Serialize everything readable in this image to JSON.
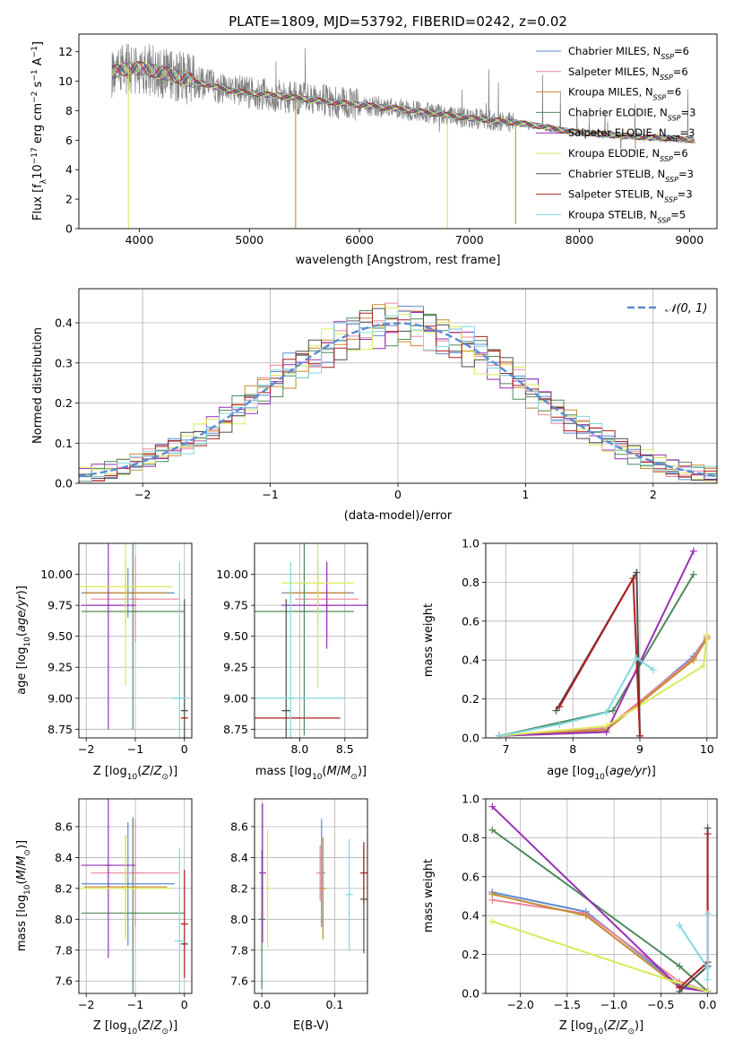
{
  "figure": {
    "title": "PLATE=1809, MJD=53792, FIBERID=0242, z=0.02"
  },
  "colors": {
    "Chabrier MILES": "#5b8bd4",
    "Salpeter MILES": "#e9879a",
    "Kroupa MILES": "#c88a2e",
    "Chabrier ELODIE": "#4f8a5b",
    "Salpeter ELODIE": "#9a2fb6",
    "Kroupa ELODIE": "#d9ea5a",
    "Chabrier STELIB": "#4d4d4d",
    "Salpeter STELIB": "#b01e1e",
    "Kroupa STELIB": "#7fd8e0",
    "data": "#808080",
    "normal": "#5b8bd4",
    "grid": "#b0b0b0"
  },
  "chart_data": [
    {
      "id": "spectrum",
      "type": "line",
      "title": "PLATE=1809, MJD=53792, FIBERID=0242, z=0.02",
      "xlabel": "wavelength [Angstrom, rest frame]",
      "ylabel": "Flux [f_λ 10^-17 erg cm^-2 s^-1 A^-1]",
      "xlim": [
        3450,
        9250
      ],
      "ylim": [
        0,
        13.2
      ],
      "xticks": [
        4000,
        5000,
        6000,
        7000,
        8000,
        9000
      ],
      "yticks": [
        0,
        2,
        4,
        6,
        8,
        10,
        12
      ],
      "grid": false,
      "legend_position": "upper right",
      "legend": [
        {
          "name": "Chabrier MILES",
          "nssp": "6"
        },
        {
          "name": "Salpeter MILES",
          "nssp": "6"
        },
        {
          "name": "Kroupa MILES",
          "nssp": "6"
        },
        {
          "name": "Chabrier ELODIE",
          "nssp": "3"
        },
        {
          "name": "Salpeter ELODIE",
          "nssp": "3"
        },
        {
          "name": "Kroupa ELODIE",
          "nssp": "6"
        },
        {
          "name": "Chabrier STELIB",
          "nssp": "3"
        },
        {
          "name": "Salpeter STELIB",
          "nssp": "3"
        },
        {
          "name": "Kroupa STELIB",
          "nssp": "5"
        }
      ],
      "continuum": [
        [
          3750,
          10.6
        ],
        [
          3850,
          10.8
        ],
        [
          4000,
          10.9
        ],
        [
          4200,
          10.6
        ],
        [
          4500,
          10.0
        ],
        [
          4800,
          9.4
        ],
        [
          5000,
          9.2
        ],
        [
          5300,
          9.0
        ],
        [
          5600,
          8.7
        ],
        [
          6000,
          8.4
        ],
        [
          6400,
          8.1
        ],
        [
          6700,
          7.8
        ],
        [
          7000,
          7.5
        ],
        [
          7300,
          7.3
        ],
        [
          7600,
          7.0
        ],
        [
          7900,
          6.6
        ],
        [
          8200,
          6.4
        ],
        [
          8600,
          6.2
        ],
        [
          8900,
          6.1
        ],
        [
          9050,
          6.0
        ]
      ],
      "dropouts": [
        {
          "x": 3900,
          "y": 0.0,
          "model": "Kroupa ELODIE"
        },
        {
          "x": 5420,
          "y": 0.0,
          "model": "Kroupa MILES"
        },
        {
          "x": 6800,
          "y": 0.0,
          "model": "Kroupa ELODIE"
        },
        {
          "x": 7420,
          "y": 0.3,
          "model": "Kroupa MILES"
        }
      ]
    },
    {
      "id": "residuals",
      "type": "line",
      "xlabel": "(data-model)/error",
      "ylabel": "Normed distribution",
      "xlim": [
        -2.5,
        2.5
      ],
      "ylim": [
        0,
        0.485
      ],
      "xticks": [
        -2,
        -1,
        0,
        1,
        2
      ],
      "yticks": [
        0.0,
        0.1,
        0.2,
        0.3,
        0.4
      ],
      "grid": true,
      "legend_position": "upper right",
      "legend": [
        {
          "name": "N(0,1)",
          "style": "dashed"
        }
      ],
      "bin_width": 0.1
    },
    {
      "id": "age-vs-z",
      "type": "scatter",
      "xlabel": "Z [log10(Z/Z⊙)]",
      "ylabel": "age [log10(age/yr)]",
      "xlim": [
        -2.15,
        0.15
      ],
      "ylim": [
        8.68,
        10.25
      ],
      "xticks": [
        -2,
        -1,
        0
      ],
      "yticks": [
        8.75,
        9.0,
        9.25,
        9.5,
        9.75,
        10.0
      ],
      "grid": true,
      "errorbars": [
        {
          "model": "Chabrier MILES",
          "x": -1.15,
          "y": 9.85,
          "xerr": 0.95,
          "yerr": 0.2
        },
        {
          "model": "Salpeter MILES",
          "x": -1.0,
          "y": 9.8,
          "xerr": 0.9,
          "yerr": 0.35
        },
        {
          "model": "Kroupa MILES",
          "x": -1.2,
          "y": 9.85,
          "xerr": 0.85,
          "yerr": 0.25
        },
        {
          "model": "Chabrier ELODIE",
          "x": -1.05,
          "y": 9.7,
          "xerr": 1.05,
          "yerr": 0.95
        },
        {
          "model": "Salpeter ELODIE",
          "x": -1.55,
          "y": 9.75,
          "xerr": 0.55,
          "yerr": 1.0
        },
        {
          "model": "Kroupa ELODIE",
          "x": -1.2,
          "y": 9.9,
          "xerr": 0.95,
          "yerr": 0.8
        },
        {
          "model": "Chabrier STELIB",
          "x": 0.0,
          "y": 8.9,
          "xerr": 0.05,
          "yerr": 0.9
        },
        {
          "model": "Salpeter STELIB",
          "x": 0.0,
          "y": 8.84,
          "xerr": 0.05,
          "yerr": 0.0
        },
        {
          "model": "Kroupa STELIB",
          "x": -0.1,
          "y": 9.0,
          "xerr": 0.15,
          "yerr": 1.1
        }
      ]
    },
    {
      "id": "age-vs-mass",
      "type": "scatter",
      "xlabel": "mass [log10(M/M⊙)]",
      "ylabel": "",
      "xlim": [
        7.5,
        8.75
      ],
      "ylim": [
        8.68,
        10.25
      ],
      "xticks": [
        8.0,
        8.5
      ],
      "yticks": [
        8.75,
        9.0,
        9.25,
        9.5,
        9.75,
        10.0
      ],
      "grid": true,
      "errorbars": [
        {
          "model": "Chabrier MILES",
          "x": 8.2,
          "y": 9.85,
          "xerr": 0.4,
          "yerr": 0.25
        },
        {
          "model": "Salpeter MILES",
          "x": 8.3,
          "y": 9.8,
          "xerr": 0.35,
          "yerr": 0.3
        },
        {
          "model": "Kroupa MILES",
          "x": 8.2,
          "y": 9.85,
          "xerr": 0.35,
          "yerr": 0.25
        },
        {
          "model": "Chabrier ELODIE",
          "x": 8.05,
          "y": 9.7,
          "xerr": 0.55,
          "yerr": 1.0
        },
        {
          "model": "Salpeter ELODIE",
          "x": 8.3,
          "y": 9.75,
          "xerr": 0.5,
          "yerr": 0.35
        },
        {
          "model": "Kroupa ELODIE",
          "x": 8.2,
          "y": 9.93,
          "xerr": 0.4,
          "yerr": 0.85
        },
        {
          "model": "Chabrier STELIB",
          "x": 7.85,
          "y": 8.9,
          "xerr": 0.05,
          "yerr": 0.9
        },
        {
          "model": "Salpeter STELIB",
          "x": 7.95,
          "y": 8.84,
          "xerr": 0.5,
          "yerr": 0.0
        },
        {
          "model": "Kroupa STELIB",
          "x": 7.9,
          "y": 9.0,
          "xerr": 0.6,
          "yerr": 1.1
        }
      ]
    },
    {
      "id": "weight-vs-age",
      "type": "line",
      "xlabel": "age [log10(age/yr)]",
      "ylabel": "mass weight",
      "xlim": [
        6.7,
        10.15
      ],
      "ylim": [
        0,
        1.0
      ],
      "xticks": [
        7,
        8,
        9,
        10
      ],
      "yticks": [
        0.0,
        0.2,
        0.4,
        0.6,
        0.8,
        1.0
      ],
      "grid": true,
      "series": [
        {
          "model": "Chabrier MILES",
          "x": [
            6.9,
            8.5,
            9.8,
            10.0
          ],
          "y": [
            0.01,
            0.04,
            0.42,
            0.52
          ]
        },
        {
          "model": "Salpeter MILES",
          "x": [
            6.9,
            8.5,
            9.8,
            10.0
          ],
          "y": [
            0.01,
            0.05,
            0.41,
            0.52
          ]
        },
        {
          "model": "Kroupa MILES",
          "x": [
            6.9,
            8.5,
            9.8,
            10.0
          ],
          "y": [
            0.01,
            0.04,
            0.4,
            0.51
          ]
        },
        {
          "model": "Chabrier ELODIE",
          "x": [
            6.9,
            8.6,
            9.8
          ],
          "y": [
            0.01,
            0.14,
            0.84
          ]
        },
        {
          "model": "Salpeter ELODIE",
          "x": [
            6.9,
            8.5,
            9.8
          ],
          "y": [
            0.01,
            0.03,
            0.96
          ]
        },
        {
          "model": "Kroupa ELODIE",
          "x": [
            6.9,
            8.5,
            9.95,
            10.0
          ],
          "y": [
            0.01,
            0.06,
            0.37,
            0.53
          ]
        },
        {
          "model": "Chabrier STELIB",
          "x": [
            7.75,
            8.95,
            9.0
          ],
          "y": [
            0.14,
            0.85,
            0.01
          ]
        },
        {
          "model": "Salpeter STELIB",
          "x": [
            7.8,
            8.9,
            9.0
          ],
          "y": [
            0.16,
            0.82,
            0.01
          ]
        },
        {
          "model": "Kroupa STELIB",
          "x": [
            6.9,
            7.8,
            8.5,
            8.95,
            9.2
          ],
          "y": [
            0.01,
            0.07,
            0.13,
            0.41,
            0.35
          ]
        }
      ]
    },
    {
      "id": "mass-vs-z",
      "type": "scatter",
      "xlabel": "Z [log10(Z/Z⊙)]",
      "ylabel": "mass [log10(M/M⊙)]",
      "xlim": [
        -2.15,
        0.15
      ],
      "ylim": [
        7.52,
        8.78
      ],
      "xticks": [
        -2,
        -1,
        0
      ],
      "yticks": [
        7.6,
        7.8,
        8.0,
        8.2,
        8.4,
        8.6
      ],
      "grid": true,
      "errorbars": [
        {
          "model": "Chabrier MILES",
          "x": -1.15,
          "y": 8.23,
          "xerr": 0.95,
          "yerr": 0.4
        },
        {
          "model": "Salpeter MILES",
          "x": -1.0,
          "y": 8.3,
          "xerr": 0.9,
          "yerr": 0.35
        },
        {
          "model": "Kroupa MILES",
          "x": -1.2,
          "y": 8.21,
          "xerr": 0.85,
          "yerr": 0.33
        },
        {
          "model": "Chabrier ELODIE",
          "x": -1.05,
          "y": 8.04,
          "xerr": 1.05,
          "yerr": 0.62
        },
        {
          "model": "Salpeter ELODIE",
          "x": -1.55,
          "y": 8.35,
          "xerr": 0.55,
          "yerr": 0.6
        },
        {
          "model": "Kroupa ELODIE",
          "x": -1.2,
          "y": 8.2,
          "xerr": 0.95,
          "yerr": 0.33
        },
        {
          "model": "Chabrier STELIB",
          "x": 0.0,
          "y": 7.84,
          "xerr": 0.05,
          "yerr": 0.0
        },
        {
          "model": "Salpeter STELIB",
          "x": 0.0,
          "y": 7.97,
          "xerr": 0.05,
          "yerr": 0.35
        },
        {
          "model": "Kroupa STELIB",
          "x": -0.1,
          "y": 7.86,
          "xerr": 0.1,
          "yerr": 0.6
        }
      ]
    },
    {
      "id": "mass-vs-ebv",
      "type": "scatter",
      "xlabel": "E(B-V)",
      "ylabel": "",
      "xlim": [
        -0.01,
        0.145
      ],
      "ylim": [
        7.52,
        8.78
      ],
      "xticks": [
        0.0,
        0.1
      ],
      "yticks": [
        7.6,
        7.8,
        8.0,
        8.2,
        8.4,
        8.6
      ],
      "grid": true,
      "errorbars": [
        {
          "model": "Chabrier MILES",
          "x": 0.082,
          "y": 8.3,
          "xerr": 0,
          "yerr": 0.35
        },
        {
          "model": "Salpeter MILES",
          "x": 0.08,
          "y": 8.3,
          "xerr": 0,
          "yerr": 0.18
        },
        {
          "model": "Kroupa MILES",
          "x": 0.084,
          "y": 8.2,
          "xerr": 0,
          "yerr": 0.33
        },
        {
          "model": "Chabrier ELODIE",
          "x": 0.0,
          "y": 8.0,
          "xerr": 0,
          "yerr": 0.45
        },
        {
          "model": "Salpeter ELODIE",
          "x": 0.001,
          "y": 8.3,
          "xerr": 0,
          "yerr": 0.45
        },
        {
          "model": "Kroupa ELODIE",
          "x": 0.008,
          "y": 8.2,
          "xerr": 0,
          "yerr": 0.38
        },
        {
          "model": "Chabrier STELIB",
          "x": 0.14,
          "y": 8.13,
          "xerr": 0,
          "yerr": 0.35
        },
        {
          "model": "Salpeter STELIB",
          "x": 0.14,
          "y": 8.3,
          "xerr": 0,
          "yerr": 0.2
        },
        {
          "model": "Kroupa STELIB",
          "x": 0.12,
          "y": 8.16,
          "xerr": 0,
          "yerr": 0.36
        }
      ]
    },
    {
      "id": "weight-vs-z",
      "type": "line",
      "xlabel": "Z [log10(Z/Z⊙)]",
      "ylabel": "mass weight",
      "xlim": [
        -2.37,
        0.1
      ],
      "ylim": [
        0,
        1.0
      ],
      "xticks": [
        -2.0,
        -1.5,
        -1.0,
        -0.5,
        0.0
      ],
      "yticks": [
        0.0,
        0.2,
        0.4,
        0.6,
        0.8,
        1.0
      ],
      "grid": true,
      "series": [
        {
          "model": "Chabrier MILES",
          "x": [
            -2.3,
            -1.3,
            -0.3,
            0.0
          ],
          "y": [
            0.52,
            0.42,
            0.04,
            0.01
          ]
        },
        {
          "model": "Salpeter MILES",
          "x": [
            -2.3,
            -1.3,
            -0.3,
            0.0
          ],
          "y": [
            0.48,
            0.41,
            0.06,
            0.01
          ]
        },
        {
          "model": "Kroupa MILES",
          "x": [
            -2.3,
            -1.3,
            -0.3,
            0.0
          ],
          "y": [
            0.51,
            0.4,
            0.03,
            0.01
          ]
        },
        {
          "model": "Chabrier ELODIE",
          "x": [
            -2.3,
            -0.3,
            0.0
          ],
          "y": [
            0.84,
            0.14,
            0.01
          ]
        },
        {
          "model": "Salpeter ELODIE",
          "x": [
            -2.3,
            -0.3,
            0.0
          ],
          "y": [
            0.96,
            0.03,
            0.01
          ]
        },
        {
          "model": "Kroupa ELODIE",
          "x": [
            -2.3,
            -0.35,
            0.0
          ],
          "y": [
            0.37,
            0.06,
            0.01
          ]
        },
        {
          "model": "Chabrier STELIB",
          "x": [
            -0.3,
            0.0,
            0.0
          ],
          "y": [
            0.01,
            0.14,
            0.85
          ]
        },
        {
          "model": "Salpeter STELIB",
          "x": [
            -0.3,
            0.0,
            0.0
          ],
          "y": [
            0.03,
            0.16,
            0.82
          ]
        },
        {
          "model": "Kroupa STELIB",
          "x": [
            -0.3,
            0.0,
            0.0,
            0.0
          ],
          "y": [
            0.35,
            0.13,
            0.07,
            0.41
          ]
        }
      ]
    }
  ]
}
